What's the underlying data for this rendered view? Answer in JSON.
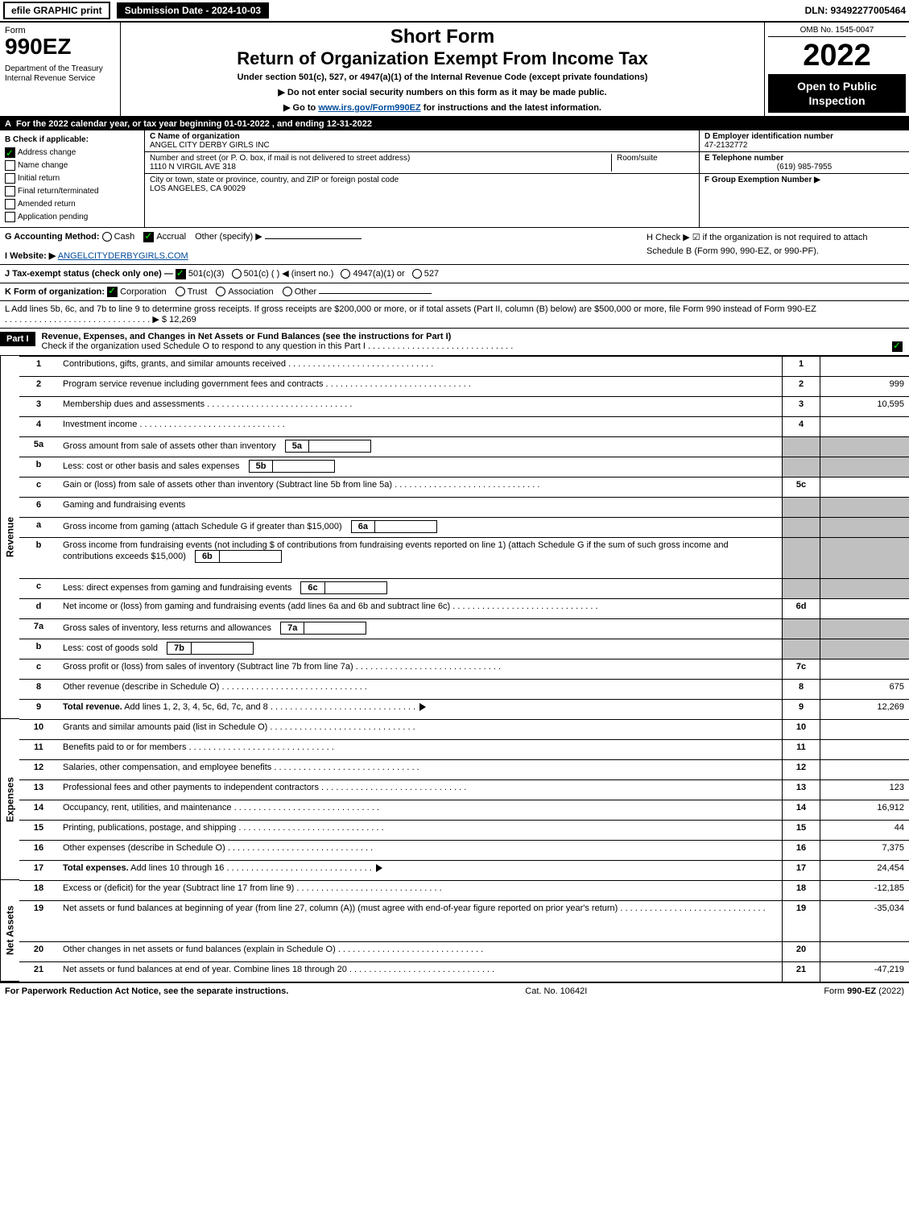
{
  "topbar": {
    "efile_label": "efile GRAPHIC print",
    "submission_label": "Submission Date - 2024-10-03",
    "dln_label": "DLN: 93492277005464"
  },
  "header": {
    "form_label": "Form",
    "form_number": "990EZ",
    "dept": "Department of the Treasury\nInternal Revenue Service",
    "short_form": "Short Form",
    "return_title": "Return of Organization Exempt From Income Tax",
    "under_section": "Under section 501(c), 527, or 4947(a)(1) of the Internal Revenue Code (except private foundations)",
    "warn1": "▶ Do not enter social security numbers on this form as it may be made public.",
    "warn2_prefix": "▶ Go to ",
    "warn2_link": "www.irs.gov/Form990EZ",
    "warn2_suffix": " for instructions and the latest information.",
    "omb": "OMB No. 1545-0047",
    "year": "2022",
    "open_public": "Open to Public Inspection"
  },
  "rowA": {
    "label_A": "A",
    "text": "For the 2022 calendar year, or tax year beginning 01-01-2022 , and ending 12-31-2022"
  },
  "B": {
    "heading": "B  Check if applicable:",
    "opts": [
      "Address change",
      "Name change",
      "Initial return",
      "Final return/terminated",
      "Amended return",
      "Application pending"
    ],
    "checked": [
      true,
      false,
      false,
      false,
      false,
      false
    ]
  },
  "C": {
    "name_label": "C Name of organization",
    "name": "ANGEL CITY DERBY GIRLS INC",
    "street_label": "Number and street (or P. O. box, if mail is not delivered to street address)",
    "street": "1110 N VIRGIL AVE 318",
    "room_label": "Room/suite",
    "city_label": "City or town, state or province, country, and ZIP or foreign postal code",
    "city": "LOS ANGELES, CA  90029"
  },
  "D": {
    "ein_label": "D Employer identification number",
    "ein": "47-2132772",
    "phone_label": "E Telephone number",
    "phone": "(619) 985-7955",
    "group_label": "F Group Exemption Number ▶"
  },
  "G": {
    "label": "G Accounting Method:",
    "cash": "Cash",
    "accrual": "Accrual",
    "other": "Other (specify) ▶"
  },
  "H": {
    "text": "H  Check ▶  ☑ if the organization is not required to attach Schedule B (Form 990, 990-EZ, or 990-PF)."
  },
  "I": {
    "label": "I Website: ▶",
    "value": "ANGELCITYDERBYGIRLS.COM"
  },
  "J": {
    "label": "J Tax-exempt status (check only one) —",
    "opt1": "501(c)(3)",
    "opt2": "501(c) (   ) ◀ (insert no.)",
    "opt3": "4947(a)(1) or",
    "opt4": "527"
  },
  "K": {
    "label": "K Form of organization:",
    "opts": [
      "Corporation",
      "Trust",
      "Association",
      "Other"
    ],
    "checked_idx": 0
  },
  "L": {
    "text": "L Add lines 5b, 6c, and 7b to line 9 to determine gross receipts. If gross receipts are $200,000 or more, or if total assets (Part II, column (B) below) are $500,000 or more, file Form 990 instead of Form 990-EZ",
    "amount_prefix": "▶ $ ",
    "amount": "12,269"
  },
  "partI": {
    "badge": "Part I",
    "title": "Revenue, Expenses, and Changes in Net Assets or Fund Balances (see the instructions for Part I)",
    "check_line": "Check if the organization used Schedule O to respond to any question in this Part I",
    "check_checked": true
  },
  "sections": [
    {
      "side": "Revenue",
      "rows": [
        {
          "no": "1",
          "desc": "Contributions, gifts, grants, and similar amounts received",
          "ref": "1",
          "val": ""
        },
        {
          "no": "2",
          "desc": "Program service revenue including government fees and contracts",
          "ref": "2",
          "val": "999"
        },
        {
          "no": "3",
          "desc": "Membership dues and assessments",
          "ref": "3",
          "val": "10,595"
        },
        {
          "no": "4",
          "desc": "Investment income",
          "ref": "4",
          "val": ""
        },
        {
          "no": "5a",
          "desc": "Gross amount from sale of assets other than inventory",
          "inner": "5a",
          "shaded_ref": true
        },
        {
          "no": "b",
          "desc": "Less: cost or other basis and sales expenses",
          "inner": "5b",
          "shaded_ref": true
        },
        {
          "no": "c",
          "desc": "Gain or (loss) from sale of assets other than inventory (Subtract line 5b from line 5a)",
          "ref": "5c",
          "val": ""
        },
        {
          "no": "6",
          "desc": "Gaming and fundraising events",
          "shaded_ref": true,
          "shaded_val": true
        },
        {
          "no": "a",
          "desc": "Gross income from gaming (attach Schedule G if greater than $15,000)",
          "inner": "6a",
          "shaded_ref": true
        },
        {
          "no": "b",
          "desc": "Gross income from fundraising events (not including $                    of contributions from fundraising events reported on line 1) (attach Schedule G if the sum of such gross income and contributions exceeds $15,000)",
          "inner": "6b",
          "shaded_ref": true,
          "tall": true
        },
        {
          "no": "c",
          "desc": "Less: direct expenses from gaming and fundraising events",
          "inner": "6c",
          "shaded_ref": true
        },
        {
          "no": "d",
          "desc": "Net income or (loss) from gaming and fundraising events (add lines 6a and 6b and subtract line 6c)",
          "ref": "6d",
          "val": ""
        },
        {
          "no": "7a",
          "desc": "Gross sales of inventory, less returns and allowances",
          "inner": "7a",
          "shaded_ref": true
        },
        {
          "no": "b",
          "desc": "Less: cost of goods sold",
          "inner": "7b",
          "shaded_ref": true
        },
        {
          "no": "c",
          "desc": "Gross profit or (loss) from sales of inventory (Subtract line 7b from line 7a)",
          "ref": "7c",
          "val": ""
        },
        {
          "no": "8",
          "desc": "Other revenue (describe in Schedule O)",
          "ref": "8",
          "val": "675"
        },
        {
          "no": "9",
          "desc": "Total revenue. Add lines 1, 2, 3, 4, 5c, 6d, 7c, and 8",
          "ref": "9",
          "val": "12,269",
          "bold": true,
          "arrow": true
        }
      ]
    },
    {
      "side": "Expenses",
      "rows": [
        {
          "no": "10",
          "desc": "Grants and similar amounts paid (list in Schedule O)",
          "ref": "10",
          "val": ""
        },
        {
          "no": "11",
          "desc": "Benefits paid to or for members",
          "ref": "11",
          "val": ""
        },
        {
          "no": "12",
          "desc": "Salaries, other compensation, and employee benefits",
          "ref": "12",
          "val": ""
        },
        {
          "no": "13",
          "desc": "Professional fees and other payments to independent contractors",
          "ref": "13",
          "val": "123"
        },
        {
          "no": "14",
          "desc": "Occupancy, rent, utilities, and maintenance",
          "ref": "14",
          "val": "16,912"
        },
        {
          "no": "15",
          "desc": "Printing, publications, postage, and shipping",
          "ref": "15",
          "val": "44"
        },
        {
          "no": "16",
          "desc": "Other expenses (describe in Schedule O)",
          "ref": "16",
          "val": "7,375"
        },
        {
          "no": "17",
          "desc": "Total expenses. Add lines 10 through 16",
          "ref": "17",
          "val": "24,454",
          "bold": true,
          "arrow": true
        }
      ]
    },
    {
      "side": "Net Assets",
      "rows": [
        {
          "no": "18",
          "desc": "Excess or (deficit) for the year (Subtract line 17 from line 9)",
          "ref": "18",
          "val": "-12,185"
        },
        {
          "no": "19",
          "desc": "Net assets or fund balances at beginning of year (from line 27, column (A)) (must agree with end-of-year figure reported on prior year's return)",
          "ref": "19",
          "val": "-35,034",
          "tall": true
        },
        {
          "no": "20",
          "desc": "Other changes in net assets or fund balances (explain in Schedule O)",
          "ref": "20",
          "val": ""
        },
        {
          "no": "21",
          "desc": "Net assets or fund balances at end of year. Combine lines 18 through 20",
          "ref": "21",
          "val": "-47,219",
          "arrow": false
        }
      ]
    }
  ],
  "footer": {
    "left": "For Paperwork Reduction Act Notice, see the separate instructions.",
    "mid": "Cat. No. 10642I",
    "right_prefix": "Form ",
    "right_form": "990-EZ",
    "right_suffix": " (2022)"
  },
  "palette": {
    "black": "#000000",
    "white": "#ffffff",
    "shade": "#c0c0c0",
    "link": "#004b9b",
    "check_green": "#00a000"
  }
}
